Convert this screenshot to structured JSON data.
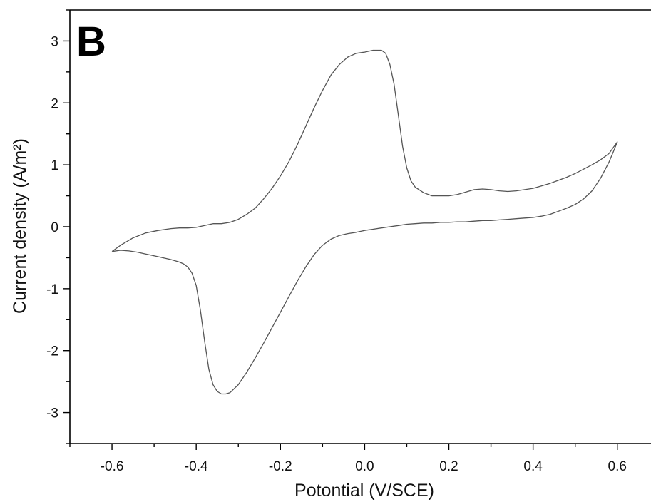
{
  "chart_data": {
    "type": "line",
    "panel_label": "B",
    "title": "",
    "xlabel": "Potontial (V/SCE)",
    "ylabel": "Current density (A/m²)",
    "xlim": [
      -0.7,
      0.68
    ],
    "ylim": [
      -3.5,
      3.5
    ],
    "grid": false,
    "x_major_ticks": [
      -0.6,
      -0.4,
      -0.2,
      0.0,
      0.2,
      0.4,
      0.6
    ],
    "x_tick_labels": [
      "-0.6",
      "-0.4",
      "-0.2",
      "0.0",
      "0.2",
      "0.4",
      "0.6"
    ],
    "y_major_ticks": [
      -3,
      -2,
      -1,
      0,
      1,
      2,
      3
    ],
    "y_tick_labels": [
      "-3",
      "-2",
      "-1",
      "0",
      "1",
      "2",
      "3"
    ],
    "series": [
      {
        "color": "#555555",
        "x": [
          -0.6,
          -0.58,
          -0.55,
          -0.52,
          -0.49,
          -0.46,
          -0.44,
          -0.42,
          -0.4,
          -0.38,
          -0.36,
          -0.35,
          -0.34,
          -0.32,
          -0.3,
          -0.28,
          -0.26,
          -0.24,
          -0.22,
          -0.2,
          -0.18,
          -0.16,
          -0.14,
          -0.12,
          -0.1,
          -0.08,
          -0.06,
          -0.04,
          -0.02,
          0.0,
          0.02,
          0.04,
          0.05,
          0.06,
          0.07,
          0.08,
          0.09,
          0.1,
          0.11,
          0.12,
          0.14,
          0.16,
          0.18,
          0.2,
          0.22,
          0.24,
          0.26,
          0.28,
          0.3,
          0.32,
          0.34,
          0.36,
          0.38,
          0.4,
          0.42,
          0.44,
          0.46,
          0.48,
          0.5,
          0.52,
          0.54,
          0.56,
          0.58,
          0.6,
          0.6,
          0.59,
          0.58,
          0.56,
          0.54,
          0.52,
          0.5,
          0.48,
          0.46,
          0.44,
          0.42,
          0.4,
          0.38,
          0.36,
          0.34,
          0.32,
          0.3,
          0.28,
          0.26,
          0.24,
          0.22,
          0.2,
          0.18,
          0.16,
          0.14,
          0.12,
          0.1,
          0.08,
          0.06,
          0.04,
          0.02,
          0.0,
          -0.02,
          -0.04,
          -0.06,
          -0.08,
          -0.1,
          -0.12,
          -0.14,
          -0.16,
          -0.18,
          -0.2,
          -0.22,
          -0.24,
          -0.26,
          -0.28,
          -0.3,
          -0.32,
          -0.33,
          -0.34,
          -0.35,
          -0.36,
          -0.37,
          -0.38,
          -0.39,
          -0.4,
          -0.41,
          -0.42,
          -0.43,
          -0.44,
          -0.46,
          -0.48,
          -0.5,
          -0.52,
          -0.54,
          -0.56,
          -0.58,
          -0.6
        ],
        "y": [
          -0.4,
          -0.3,
          -0.18,
          -0.1,
          -0.06,
          -0.03,
          -0.02,
          -0.02,
          -0.01,
          0.02,
          0.05,
          0.05,
          0.05,
          0.07,
          0.12,
          0.2,
          0.3,
          0.45,
          0.62,
          0.82,
          1.05,
          1.32,
          1.62,
          1.92,
          2.2,
          2.45,
          2.62,
          2.74,
          2.8,
          2.82,
          2.85,
          2.85,
          2.8,
          2.62,
          2.3,
          1.8,
          1.3,
          0.95,
          0.74,
          0.64,
          0.55,
          0.5,
          0.5,
          0.5,
          0.52,
          0.56,
          0.6,
          0.61,
          0.6,
          0.58,
          0.57,
          0.58,
          0.6,
          0.62,
          0.66,
          0.7,
          0.75,
          0.8,
          0.86,
          0.93,
          1.0,
          1.08,
          1.18,
          1.37,
          1.37,
          1.2,
          1.04,
          0.78,
          0.58,
          0.45,
          0.36,
          0.3,
          0.25,
          0.2,
          0.17,
          0.15,
          0.14,
          0.13,
          0.12,
          0.11,
          0.1,
          0.1,
          0.09,
          0.08,
          0.08,
          0.07,
          0.07,
          0.06,
          0.06,
          0.05,
          0.04,
          0.02,
          0.0,
          -0.02,
          -0.04,
          -0.06,
          -0.09,
          -0.11,
          -0.14,
          -0.2,
          -0.3,
          -0.45,
          -0.65,
          -0.88,
          -1.13,
          -1.38,
          -1.63,
          -1.88,
          -2.12,
          -2.35,
          -2.55,
          -2.68,
          -2.7,
          -2.7,
          -2.66,
          -2.55,
          -2.3,
          -1.85,
          -1.35,
          -0.95,
          -0.75,
          -0.65,
          -0.6,
          -0.57,
          -0.53,
          -0.5,
          -0.47,
          -0.44,
          -0.41,
          -0.39,
          -0.38,
          -0.4
        ]
      }
    ]
  }
}
